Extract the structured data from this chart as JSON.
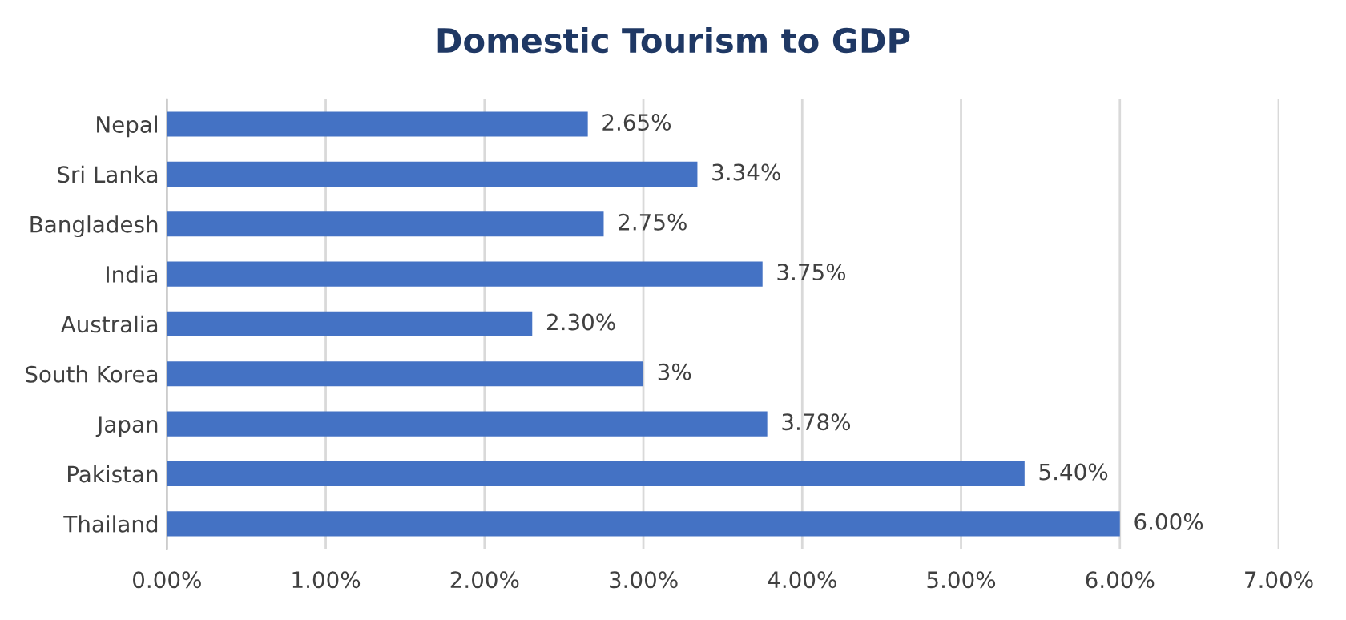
{
  "chart_data": {
    "type": "bar",
    "orientation": "horizontal",
    "title": "Domestic Tourism to GDP",
    "categories": [
      "Nepal",
      "Sri Lanka",
      "Bangladesh",
      "India",
      "Australia",
      "South Korea",
      "Japan",
      "Pakistan",
      "Thailand"
    ],
    "values": [
      2.65,
      3.34,
      2.75,
      3.75,
      2.3,
      3,
      3.78,
      5.4,
      6.0
    ],
    "value_labels": [
      "2.65%",
      "3.34%",
      "2.75%",
      "3.75%",
      "2.30%",
      "3%",
      "3.78%",
      "5.40%",
      "6.00%"
    ],
    "color": "#4472c4",
    "xlim": [
      0,
      7
    ],
    "xticks": [
      {
        "value": 0,
        "label": "0.00%"
      },
      {
        "value": 1,
        "label": "1.00%"
      },
      {
        "value": 2,
        "label": "2.00%"
      },
      {
        "value": 3,
        "label": "3.00%"
      },
      {
        "value": 4,
        "label": "4.00%"
      },
      {
        "value": 5,
        "label": "5.00%"
      },
      {
        "value": 6,
        "label": "6.00%"
      },
      {
        "value": 7,
        "label": "7.00%"
      }
    ],
    "grid": "x",
    "legend": false
  }
}
